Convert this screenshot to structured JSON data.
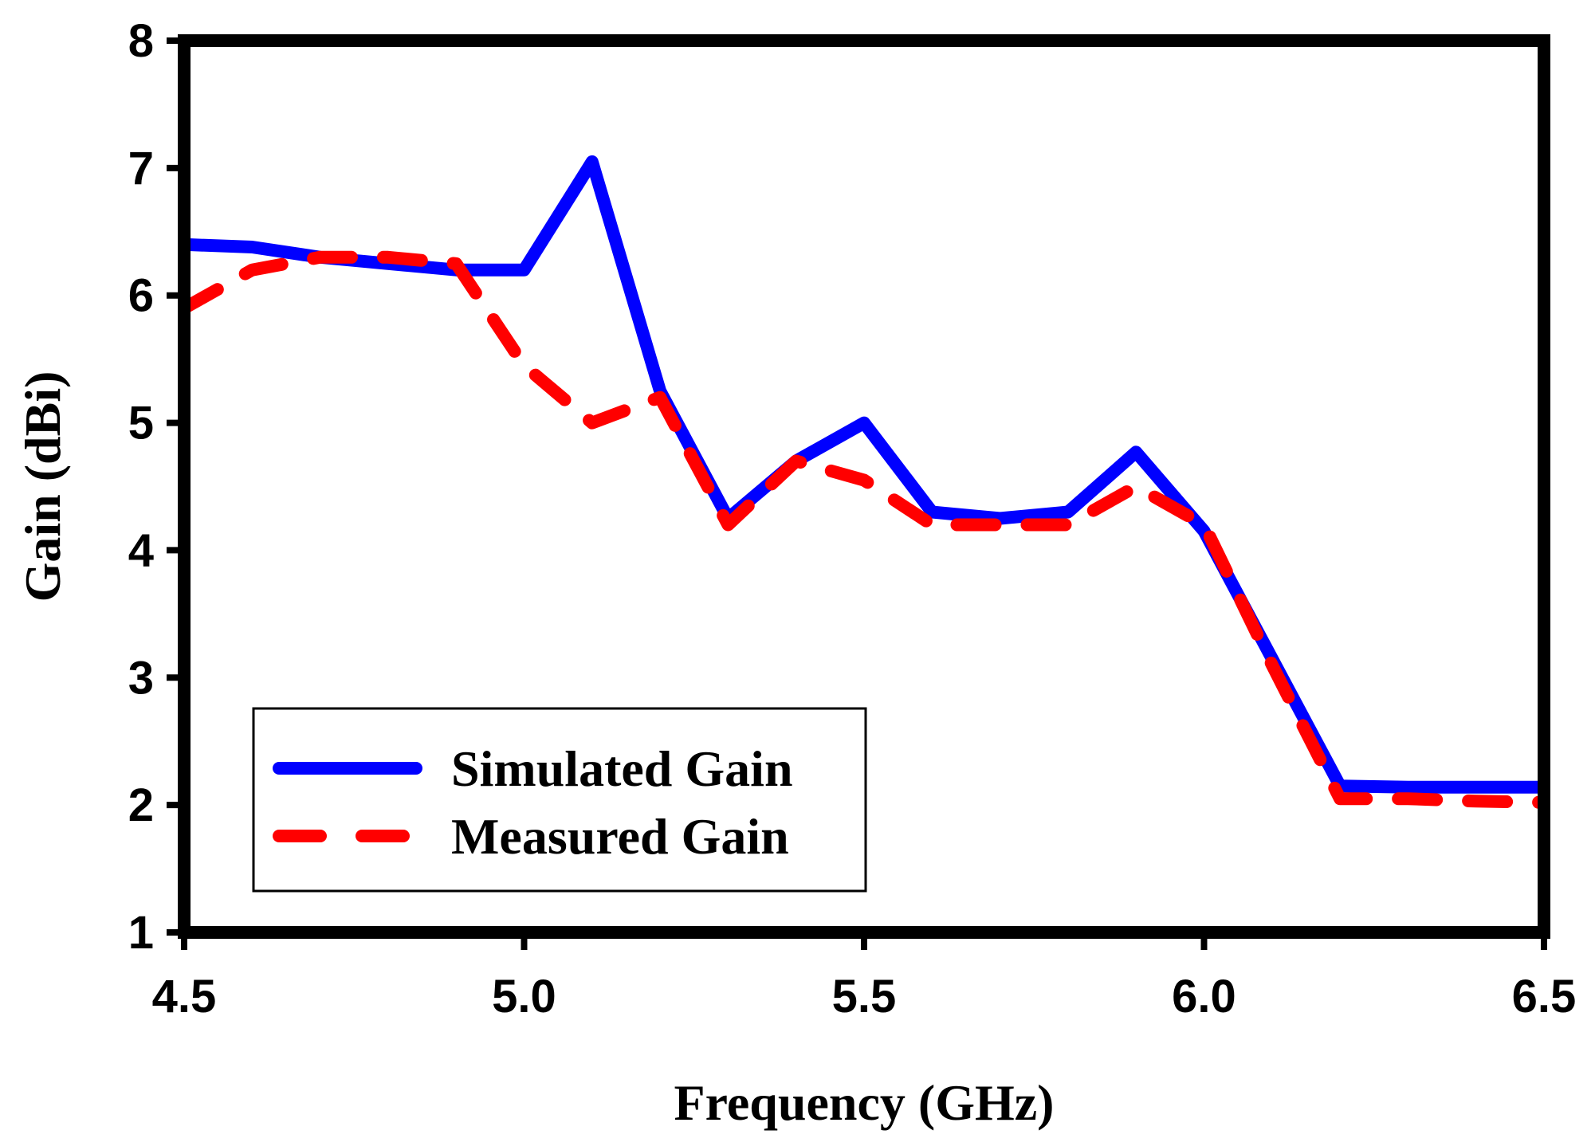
{
  "chart_data": {
    "type": "line",
    "title": "",
    "xlabel": "Frequency (GHz)",
    "ylabel": "Gain (dBi)",
    "xlim": [
      4.5,
      6.5
    ],
    "ylim": [
      1,
      8
    ],
    "xticks": [
      "4.5",
      "5.0",
      "5.5",
      "6.0",
      "6.5"
    ],
    "yticks": [
      "1",
      "2",
      "3",
      "4",
      "5",
      "6",
      "7",
      "8"
    ],
    "grid": false,
    "legend_position": "bottom-left",
    "series": [
      {
        "name": "Simulated Gain",
        "color": "#0000ff",
        "style": "solid",
        "x": [
          4.5,
          4.6,
          4.7,
          4.8,
          4.9,
          5.0,
          5.1,
          5.2,
          5.3,
          5.4,
          5.5,
          5.6,
          5.7,
          5.8,
          5.9,
          6.0,
          6.1,
          6.2,
          6.3,
          6.4,
          6.5
        ],
        "y": [
          6.4,
          6.38,
          6.3,
          6.25,
          6.2,
          6.2,
          7.05,
          5.25,
          4.25,
          4.7,
          5.0,
          4.3,
          4.25,
          4.3,
          4.77,
          4.15,
          3.15,
          2.15,
          2.14,
          2.14,
          2.14
        ]
      },
      {
        "name": "Measured Gain",
        "color": "#ff0000",
        "style": "dashed",
        "x": [
          4.5,
          4.6,
          4.7,
          4.8,
          4.9,
          5.0,
          5.1,
          5.2,
          5.3,
          5.4,
          5.5,
          5.6,
          5.7,
          5.8,
          5.9,
          6.0,
          6.1,
          6.2,
          6.3,
          6.4,
          6.5
        ],
        "y": [
          5.9,
          6.2,
          6.3,
          6.3,
          6.25,
          5.45,
          5.0,
          5.2,
          4.2,
          4.7,
          4.55,
          4.2,
          4.2,
          4.2,
          4.5,
          4.2,
          3.1,
          2.05,
          2.05,
          2.03,
          2.02
        ]
      }
    ]
  }
}
